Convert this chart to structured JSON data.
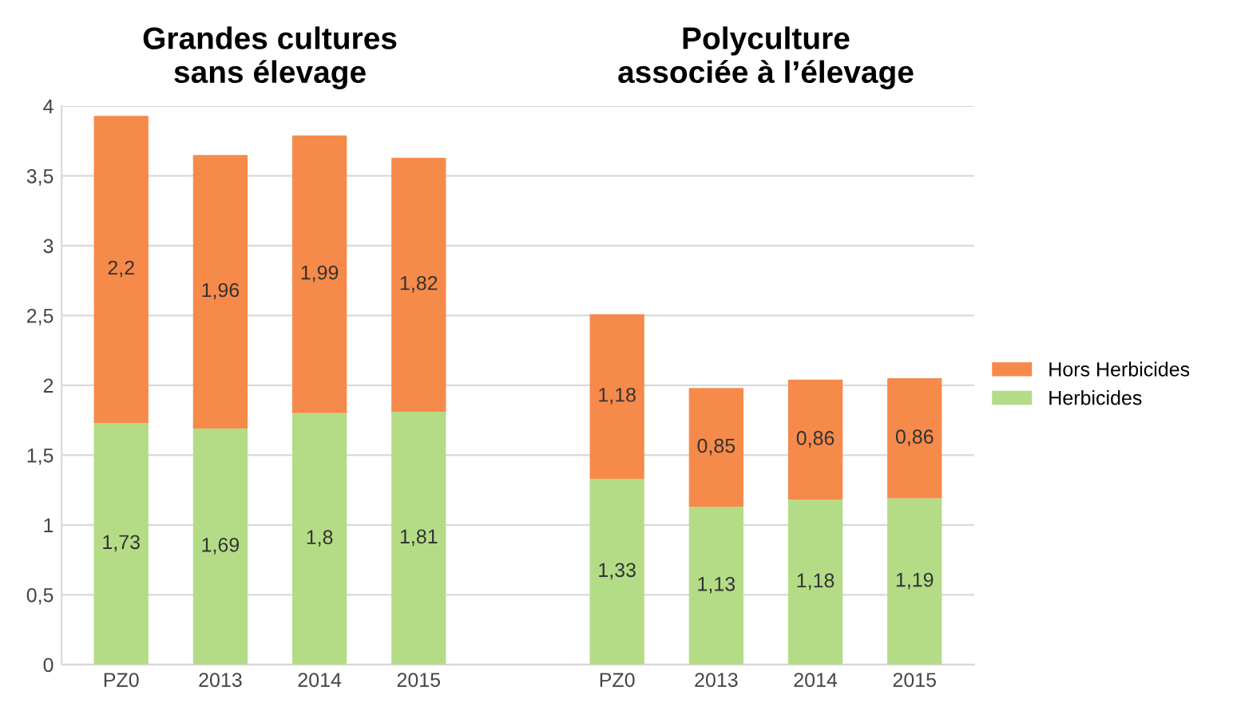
{
  "chart_data": {
    "type": "bar",
    "stacked": true,
    "categories": [
      "PZ0",
      "2013",
      "2014",
      "2015",
      null,
      "PZ0",
      "2013",
      "2014",
      "2015"
    ],
    "ylim": [
      0,
      4
    ],
    "yticks": [
      0,
      {
        "value": 0.5,
        "label": "0,5"
      },
      1,
      {
        "value": 1.5,
        "label": "1,5"
      },
      2,
      {
        "value": 2.5,
        "label": "2,5"
      },
      3,
      {
        "value": 3.5,
        "label": "3,5"
      },
      4
    ],
    "grid": "y",
    "legend": "right",
    "annotations": [
      "Grandes cultures\nsans élevage",
      "Polyculture\nassociée à l’élevage"
    ],
    "series": [
      {
        "name": "Herbicides",
        "color": "#b4dc86",
        "values": [
          1.73,
          1.69,
          1.8,
          1.81,
          null,
          1.33,
          1.13,
          1.18,
          1.19
        ],
        "value_labels": [
          "1,73",
          "1,69",
          "1,8",
          "1,81",
          null,
          "1,33",
          "1,13",
          "1,18",
          "1,19"
        ]
      },
      {
        "name": "Hors Herbicides",
        "color": "#f68a4a",
        "values": [
          2.2,
          1.96,
          1.99,
          1.82,
          null,
          1.18,
          0.85,
          0.86,
          0.86
        ],
        "value_labels": [
          "2,2",
          "1,96",
          "1,99",
          "1,82",
          null,
          "1,18",
          "0,85",
          "0,86",
          "0,86"
        ]
      }
    ]
  }
}
